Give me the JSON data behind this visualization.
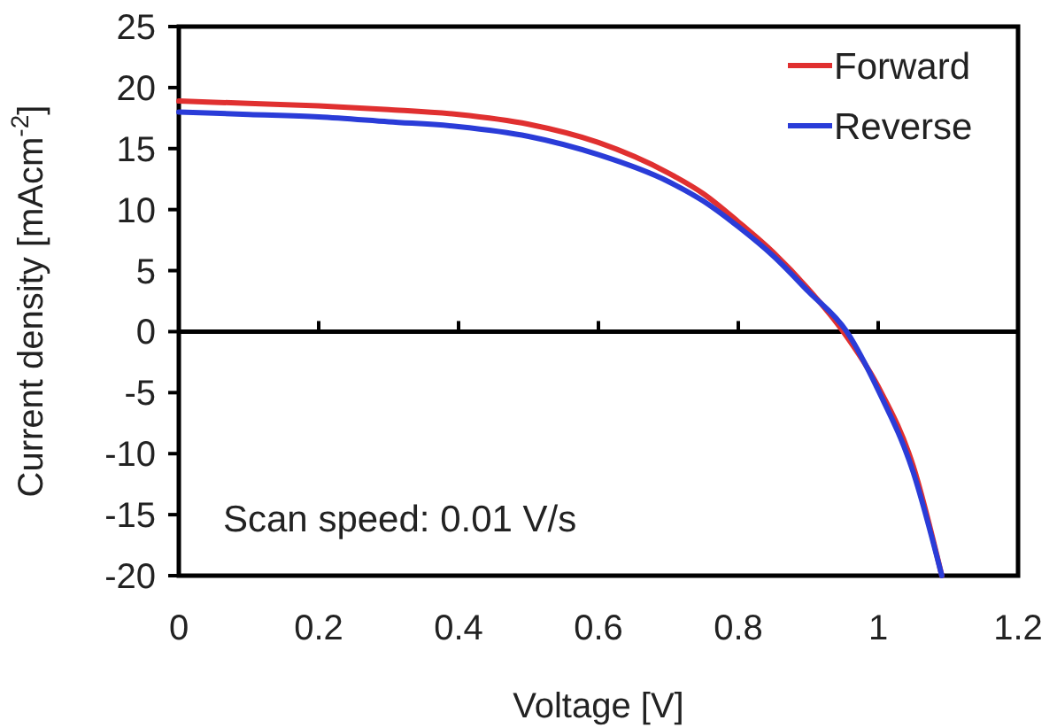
{
  "chart_data": {
    "type": "line",
    "xlabel": "Voltage [V]",
    "ylabel": "Current density [mAcm$^{-2}$]",
    "xlim": [
      0,
      1.2
    ],
    "ylim": [
      -20,
      25
    ],
    "xticks": [
      0,
      0.2,
      0.4,
      0.6,
      0.8,
      1,
      1.2
    ],
    "yticks": [
      -20,
      -15,
      -10,
      -5,
      0,
      5,
      10,
      15,
      20,
      25
    ],
    "legend": "top right",
    "line_style": "solid",
    "marker": "none",
    "annotations": [
      "Scan speed: 0.01 V/s"
    ],
    "series": [
      {
        "name": "Forward",
        "color": "#e03030",
        "x": [
          0,
          0.1,
          0.2,
          0.3,
          0.4,
          0.5,
          0.6,
          0.7,
          0.75,
          0.8,
          0.85,
          0.9,
          0.95,
          1.0,
          1.05,
          1.091
        ],
        "values": [
          18.9,
          18.7,
          18.5,
          18.2,
          17.8,
          17,
          15.5,
          13,
          11.3,
          9,
          6.5,
          3.5,
          0,
          -4.5,
          -11,
          -20
        ]
      },
      {
        "name": "Reverse",
        "color": "#2a3cd8",
        "x": [
          0,
          0.1,
          0.2,
          0.3,
          0.4,
          0.5,
          0.6,
          0.7,
          0.75,
          0.8,
          0.85,
          0.9,
          0.955,
          1.0,
          1.05,
          1.091
        ],
        "values": [
          18,
          17.8,
          17.6,
          17.2,
          16.8,
          16,
          14.5,
          12.3,
          10.7,
          8.6,
          6.2,
          3.3,
          0,
          -4.8,
          -11.5,
          -20
        ]
      }
    ]
  }
}
